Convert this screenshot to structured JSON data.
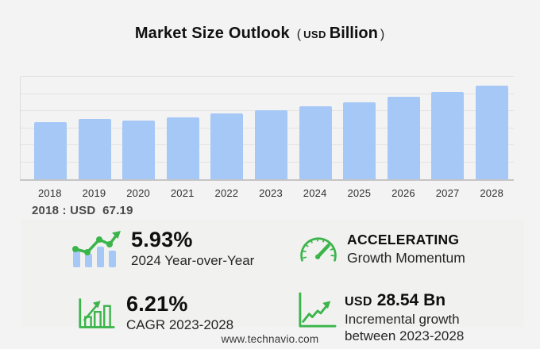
{
  "title": {
    "main": "Market Size Outlook",
    "paren_open": "(",
    "currency": "USD",
    "unit": "Billion",
    "paren_close": ")"
  },
  "chart_data": {
    "type": "bar",
    "title": "Market Size Outlook (USD Billion)",
    "categories": [
      "2018",
      "2019",
      "2020",
      "2021",
      "2022",
      "2023",
      "2024",
      "2025",
      "2026",
      "2027",
      "2028"
    ],
    "values": [
      67.19,
      70.6,
      68.9,
      72.5,
      76.8,
      81.1,
      85.9,
      90.4,
      96.3,
      102.8,
      109.7
    ],
    "xlabel": "",
    "ylabel": "",
    "ylim": [
      0,
      120
    ],
    "gridline_step": 20,
    "grid": true,
    "legend": false,
    "bar_color": "#a5c8f7"
  },
  "base_note": {
    "text": "2018 : USD  67.19"
  },
  "stats": {
    "yoy": {
      "icon": "growth-bars-trend-icon",
      "value": "5.93%",
      "label": "2024 Year-over-Year"
    },
    "momentum": {
      "icon": "gauge-icon",
      "value": "ACCELERATING",
      "label": "Growth Momentum"
    },
    "cagr": {
      "icon": "bar-chart-arrow-icon",
      "value": "6.21%",
      "label": "CAGR 2023-2028"
    },
    "incremental": {
      "icon": "line-chart-arrow-icon",
      "currency": "USD",
      "value": "28.54 Bn",
      "label_line1": "Incremental growth",
      "label_line2": "between 2023-2028"
    }
  },
  "footer": {
    "url": "www.technavio.com"
  },
  "colors": {
    "accent_green": "#3bb54a",
    "bar_blue": "#a5c8f7",
    "background": "#f3f3f4",
    "panel": "#f1f1f0",
    "text_dark": "#111111",
    "text_gray": "#4a4a4a"
  }
}
